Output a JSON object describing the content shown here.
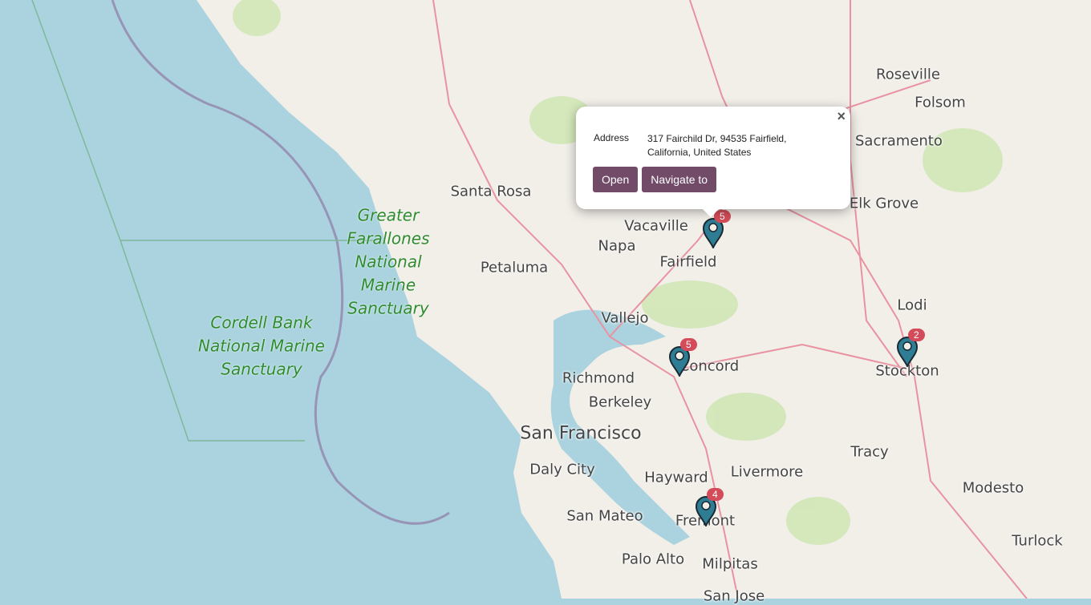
{
  "map": {
    "city_labels": [
      "Roseville",
      "Folsom",
      "Sacramento",
      "Santa Rosa",
      "Elk Grove",
      "Vacaville",
      "Napa",
      "Petaluma",
      "Fairfield",
      "Lodi",
      "Vallejo",
      "Concord",
      "Stockton",
      "Richmond",
      "Berkeley",
      "San Francisco",
      "Tracy",
      "Daly City",
      "Hayward",
      "Livermore",
      "Modesto",
      "San Mateo",
      "Fremont",
      "Turlock",
      "Palo Alto",
      "Milpitas",
      "San Jose"
    ],
    "sanctuaries": [
      "Greater Farallones National Marine Sanctuary",
      "Cordell Bank National Marine Sanctuary"
    ],
    "colors": {
      "water": "#aad3df",
      "land": "#f2efe9",
      "park": "#cde6b0",
      "marker": "#2f7d95",
      "badge": "#d44c59",
      "button": "#714b67"
    }
  },
  "markers": [
    {
      "name": "Fairfield",
      "count": "5"
    },
    {
      "name": "Concord",
      "count": "5"
    },
    {
      "name": "Stockton",
      "count": "2"
    },
    {
      "name": "Fremont",
      "count": "4"
    }
  ],
  "popup": {
    "close": "×",
    "field_label": "Address",
    "field_value": "317 Fairchild Dr, 94535 Fairfield, California, United States",
    "open_label": "Open",
    "navigate_label": "Navigate to"
  }
}
